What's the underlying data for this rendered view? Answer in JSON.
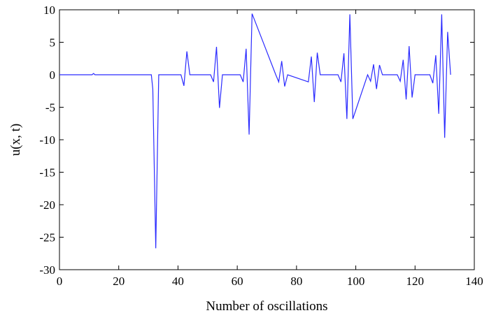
{
  "chart_data": {
    "type": "line",
    "title": "",
    "xlabel": "Number of oscillations",
    "ylabel": "u(x, t)",
    "xlim": [
      0,
      140
    ],
    "ylim": [
      -30,
      10
    ],
    "xticks": [
      0,
      20,
      40,
      60,
      80,
      100,
      120,
      140
    ],
    "yticks": [
      10,
      5,
      0,
      -5,
      -10,
      -15,
      -20,
      -25,
      -30
    ],
    "grid": false,
    "legend": "none",
    "series": [
      {
        "color": "#2b2bff",
        "x": [
          0,
          11,
          11.5,
          12,
          31,
          31.5,
          32.5,
          33.5,
          41,
          42,
          43,
          44,
          51,
          52,
          53,
          54,
          55,
          61,
          62,
          63,
          64,
          65,
          73,
          74,
          75,
          76,
          77,
          84,
          85,
          86,
          87,
          88,
          94,
          95,
          96,
          97,
          98,
          99,
          104,
          105,
          106,
          107,
          108,
          109,
          114,
          115,
          116,
          117,
          118,
          119,
          120,
          121,
          125,
          126,
          127,
          128,
          129,
          130,
          131,
          132
        ],
        "y": [
          0,
          0,
          0.2,
          0,
          0,
          -2.2,
          -26.7,
          0,
          0,
          -1.7,
          3.6,
          0,
          0,
          -1.1,
          4.3,
          -5.1,
          0,
          0,
          -1.1,
          4.0,
          -9.2,
          9.4,
          0,
          -1.1,
          2.1,
          -1.8,
          0,
          -1.1,
          2.8,
          -4.2,
          3.4,
          0,
          0,
          -1.1,
          3.3,
          -6.8,
          9.3,
          -6.8,
          0,
          -1.0,
          1.6,
          -2.2,
          1.5,
          0,
          0,
          -1.0,
          2.3,
          -3.8,
          4.4,
          -3.5,
          0,
          0,
          0,
          -1.3,
          3.0,
          -6.0,
          9.3,
          -9.7,
          6.6,
          0
        ]
      }
    ]
  }
}
